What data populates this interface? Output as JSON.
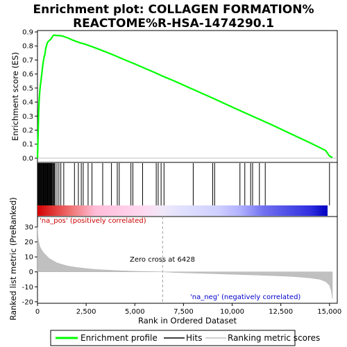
{
  "title_line1": "Enrichment plot: COLLAGEN FORMATION%",
  "title_line2": "REACTOME%R-HSA-1474290.1",
  "legend": {
    "items": [
      {
        "label": "Enrichment profile",
        "color": "#00ff00"
      },
      {
        "label": "Hits",
        "color": "#000000"
      },
      {
        "label": "Ranking metric scores",
        "color": "#c0c0c0"
      }
    ]
  },
  "chart_data": [
    {
      "type": "line",
      "name": "enrichment-profile",
      "ylabel": "Enrichment score (ES)",
      "xlim": [
        0,
        15400
      ],
      "ylim": [
        -0.03,
        0.91
      ],
      "yticks": [
        "0.0",
        "0.1",
        "0.2",
        "0.3",
        "0.4",
        "0.5",
        "0.6",
        "0.7",
        "0.8",
        "0.9"
      ],
      "ytick_values": [
        0.0,
        0.1,
        0.2,
        0.3,
        0.4,
        0.5,
        0.6,
        0.7,
        0.8,
        0.9
      ],
      "grid": false,
      "color": "#00ff00",
      "x": [
        0,
        30,
        60,
        90,
        120,
        150,
        180,
        220,
        260,
        300,
        340,
        380,
        420,
        460,
        500,
        540,
        580,
        620,
        660,
        700,
        740,
        780,
        820,
        860,
        900,
        1000,
        1100,
        1200,
        1300,
        1400,
        1600,
        1800,
        2000,
        2200,
        2400,
        2600,
        2800,
        3000,
        3500,
        4000,
        4500,
        5000,
        5500,
        6000,
        6428,
        7000,
        8000,
        9000,
        10000,
        11000,
        12000,
        13000,
        14000,
        14800,
        15000,
        15150
      ],
      "y": [
        0.0,
        0.15,
        0.33,
        0.42,
        0.48,
        0.52,
        0.55,
        0.6,
        0.65,
        0.69,
        0.72,
        0.74,
        0.78,
        0.8,
        0.82,
        0.83,
        0.835,
        0.84,
        0.845,
        0.85,
        0.86,
        0.87,
        0.875,
        0.878,
        0.876,
        0.875,
        0.874,
        0.873,
        0.87,
        0.865,
        0.855,
        0.842,
        0.832,
        0.822,
        0.815,
        0.805,
        0.795,
        0.785,
        0.758,
        0.73,
        0.7,
        0.672,
        0.642,
        0.612,
        0.585,
        0.552,
        0.49,
        0.428,
        0.365,
        0.302,
        0.24,
        0.175,
        0.11,
        0.055,
        0.015,
        0.005
      ]
    },
    {
      "type": "hits",
      "name": "hits",
      "color": "#000000",
      "x": [
        20,
        50,
        80,
        110,
        140,
        170,
        200,
        230,
        260,
        290,
        320,
        350,
        380,
        410,
        440,
        470,
        500,
        530,
        560,
        590,
        620,
        650,
        680,
        710,
        740,
        780,
        820,
        860,
        900,
        1000,
        1100,
        1200,
        1350,
        1900,
        2100,
        2250,
        2350,
        2600,
        2800,
        3350,
        3800,
        4100,
        4200,
        4800,
        4900,
        5400,
        6100,
        6200,
        6350,
        6500,
        8000,
        9000,
        9100,
        10400,
        10650,
        10950,
        11050,
        11400,
        11700,
        15000
      ]
    },
    {
      "type": "area",
      "name": "ranked-list-metric",
      "ylabel": "Ranked list metric (PreRanked)",
      "xlabel": "Rank in Ordered Dataset",
      "xlim": [
        0,
        15400
      ],
      "ylim": [
        -21,
        37
      ],
      "xticks": [
        "0",
        "2,500",
        "5,000",
        "7,500",
        "10,000",
        "12,500",
        "15,000"
      ],
      "xtick_values": [
        0,
        2500,
        5000,
        7500,
        10000,
        12500,
        15000
      ],
      "yticks": [
        "-20",
        "-10",
        "0",
        "10",
        "20",
        "30"
      ],
      "ytick_values": [
        -20,
        -10,
        0,
        10,
        20,
        30
      ],
      "color": "#c0c0c0",
      "x": [
        0,
        20,
        60,
        120,
        200,
        300,
        450,
        600,
        800,
        1000,
        1300,
        1600,
        2000,
        2500,
        3000,
        4000,
        5000,
        6000,
        6428,
        7000,
        8000,
        9000,
        10000,
        11000,
        12000,
        13000,
        14000,
        14500,
        14800,
        15000,
        15100,
        15150
      ],
      "y": [
        30,
        24,
        20,
        17,
        15,
        13,
        11,
        9,
        7.5,
        6,
        4.8,
        3.8,
        3,
        2.2,
        1.6,
        0.9,
        0.4,
        0.1,
        0,
        -0.4,
        -0.8,
        -1.2,
        -1.6,
        -2,
        -2.5,
        -3,
        -4,
        -5,
        -6.5,
        -9,
        -13,
        -18
      ]
    }
  ],
  "annotations": {
    "pos_label": "'na_pos' (positively correlated)",
    "neg_label": "'na_neg' (negatively correlated)",
    "zero_cross": "Zero cross at 6428",
    "zero_cross_x": 6428
  }
}
